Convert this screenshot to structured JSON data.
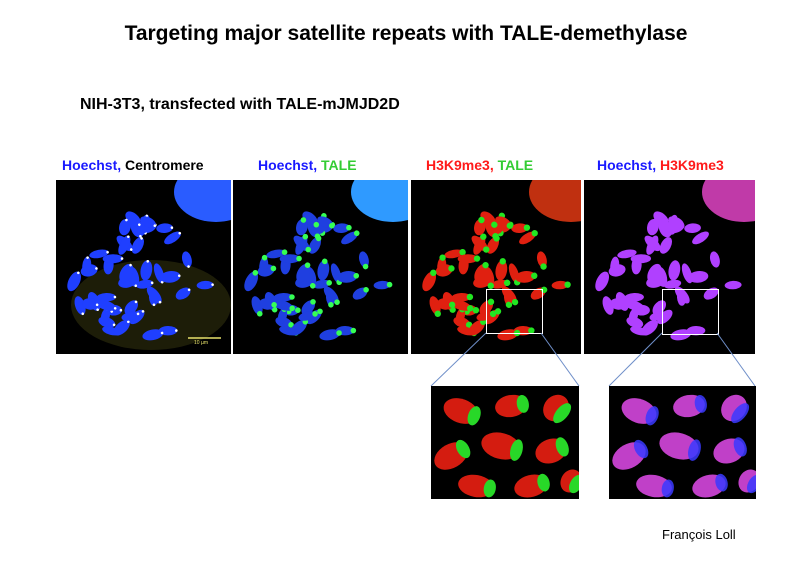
{
  "title": "Targeting major satellite repeats with TALE-demethylase",
  "subtitle": "NIH-3T3, transfected with TALE-mJMJD2D",
  "panels": [
    {
      "label_a": "Hoechst,",
      "label_b": "Centromere",
      "color_a": "#1a1aff",
      "color_b": "#000000"
    },
    {
      "label_a": "Hoechst,",
      "label_b": "TALE",
      "color_a": "#1a1aff",
      "color_b": "#33cc33"
    },
    {
      "label_a": "H3K9me3,",
      "label_b": "TALE",
      "color_a": "#ff1a1a",
      "color_b": "#33cc33"
    },
    {
      "label_a": "Hoechst,",
      "label_b": "H3K9me3",
      "color_a": "#1a1aff",
      "color_b": "#ff1a1a"
    }
  ],
  "scale_bar": "10 µm",
  "credit": "François Loll"
}
